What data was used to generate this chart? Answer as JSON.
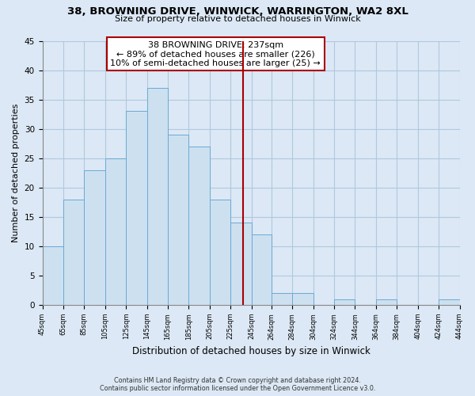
{
  "title": "38, BROWNING DRIVE, WINWICK, WARRINGTON, WA2 8XL",
  "subtitle": "Size of property relative to detached houses in Winwick",
  "xlabel": "Distribution of detached houses by size in Winwick",
  "ylabel": "Number of detached properties",
  "bar_color": "#cde0f0",
  "bar_edge_color": "#6aaad4",
  "bins": [
    45,
    65,
    85,
    105,
    125,
    145,
    165,
    185,
    205,
    225,
    245,
    264,
    284,
    304,
    324,
    344,
    364,
    384,
    404,
    424,
    444
  ],
  "counts": [
    10,
    18,
    23,
    25,
    33,
    37,
    29,
    27,
    18,
    14,
    12,
    2,
    2,
    0,
    1,
    0,
    1,
    0,
    0,
    1
  ],
  "property_size": 237,
  "vline_color": "#aa0000",
  "annotation_title": "38 BROWNING DRIVE: 237sqm",
  "annotation_line1": "← 89% of detached houses are smaller (226)",
  "annotation_line2": "10% of semi-detached houses are larger (25) →",
  "ylim": [
    0,
    45
  ],
  "yticks": [
    0,
    5,
    10,
    15,
    20,
    25,
    30,
    35,
    40,
    45
  ],
  "tick_labels": [
    "45sqm",
    "65sqm",
    "85sqm",
    "105sqm",
    "125sqm",
    "145sqm",
    "165sqm",
    "185sqm",
    "205sqm",
    "225sqm",
    "245sqm",
    "264sqm",
    "284sqm",
    "304sqm",
    "324sqm",
    "344sqm",
    "364sqm",
    "384sqm",
    "404sqm",
    "424sqm",
    "444sqm"
  ],
  "footer_line1": "Contains HM Land Registry data © Crown copyright and database right 2024.",
  "footer_line2": "Contains public sector information licensed under the Open Government Licence v3.0.",
  "bg_color": "#dce8f5",
  "plot_bg_color": "#dce8f5",
  "grid_color": "#b0c8de",
  "ann_box_color": "#ffffff",
  "ann_edge_color": "#aa0000"
}
